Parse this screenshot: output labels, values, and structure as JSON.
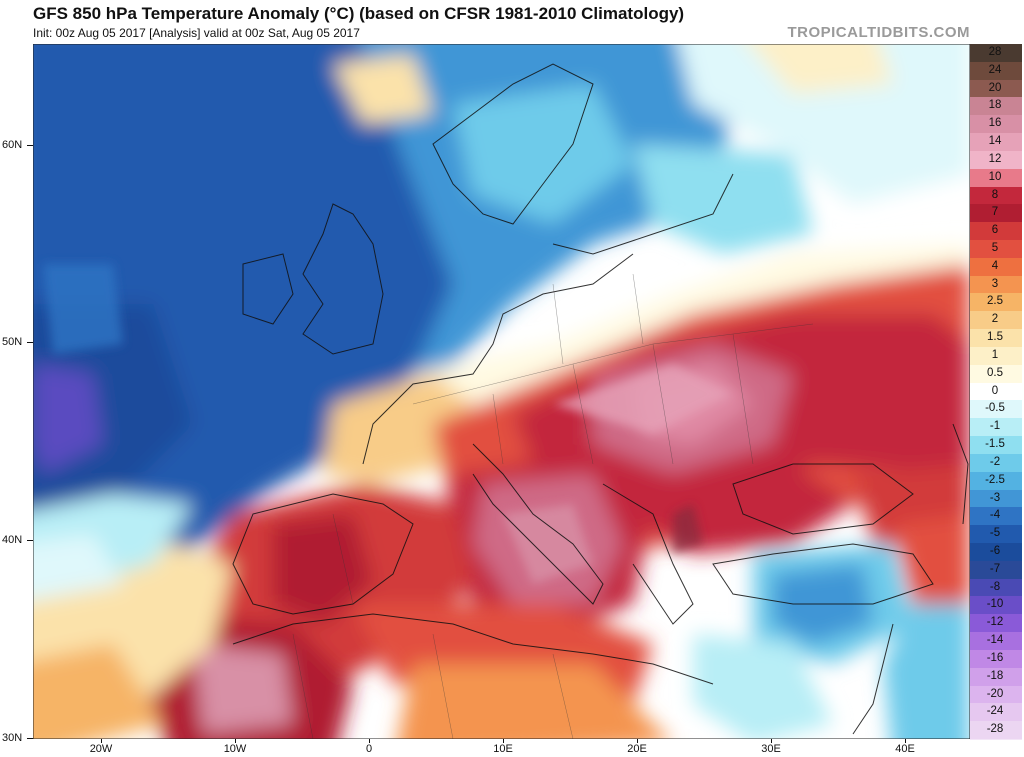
{
  "header": {
    "title": "GFS 850 hPa Temperature Anomaly (°C) (based on CFSR 1981-2010 Climatology)",
    "subtitle": "Init: 00z Aug 05 2017   [Analysis]   valid at 00z Sat, Aug 05 2017",
    "brand": "TROPICALTIDBITS.COM"
  },
  "axes": {
    "lat_labels": [
      "60N",
      "50N",
      "40N",
      "30N"
    ],
    "lon_labels": [
      "20W",
      "10W",
      "0",
      "10E",
      "20E",
      "30E",
      "40E"
    ]
  },
  "colorbar": {
    "labels": [
      "28",
      "24",
      "20",
      "18",
      "16",
      "14",
      "12",
      "10",
      "8",
      "7",
      "6",
      "5",
      "4",
      "3",
      "2.5",
      "2",
      "1.5",
      "1",
      "0.5",
      "0",
      "-0.5",
      "-1",
      "-1.5",
      "-2",
      "-2.5",
      "-3",
      "-4",
      "-5",
      "-6",
      "-7",
      "-8",
      "-10",
      "-12",
      "-14",
      "-16",
      "-18",
      "-20",
      "-24",
      "-28"
    ],
    "colors": [
      "#4a3a30",
      "#6e4a3c",
      "#8c5a50",
      "#c98494",
      "#d890a6",
      "#e6a2b8",
      "#f0b4c8",
      "#e87a8a",
      "#c3283c",
      "#b01e32",
      "#d23a3a",
      "#e25040",
      "#ee7040",
      "#f49450",
      "#f6b466",
      "#f8cc88",
      "#fbe2aa",
      "#fdf0c8",
      "#fffae2",
      "#ffffff",
      "#dff8fb",
      "#b8eef6",
      "#8fdff0",
      "#6ecbea",
      "#53b2e2",
      "#4196d6",
      "#2f74c4",
      "#215aae",
      "#1b4c9c",
      "#2a4a98",
      "#4a4ab4",
      "#6a4ec8",
      "#8a5ad8",
      "#a870e0",
      "#c088e6",
      "#d0a0ea",
      "#dcb4ee",
      "#e6c8f0",
      "#ecd6f2"
    ]
  },
  "map": {
    "region": "Europe, North Africa, North Atlantic",
    "colors": {
      "deep_blue": "#1e4f9e",
      "mid_blue": "#2f74c4",
      "light_blue": "#6ecbea",
      "cyan": "#b8eef6",
      "warm_yellow": "#f8cc88",
      "orange": "#ee7040",
      "red": "#d23a3a",
      "dark_red": "#b01e32",
      "pink": "#d890a6",
      "purple": "#4a4ab4"
    }
  }
}
